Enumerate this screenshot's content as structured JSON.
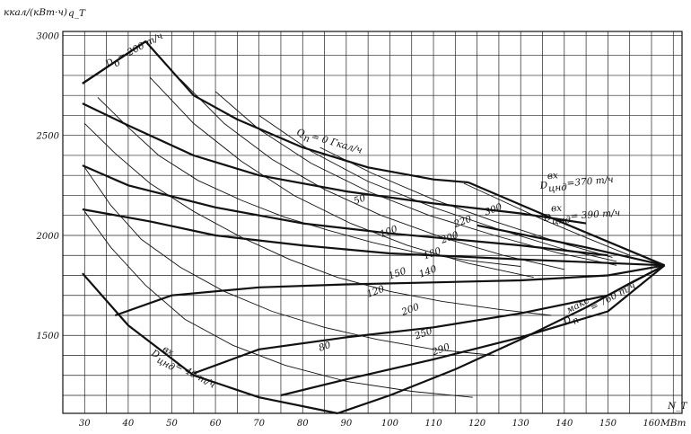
{
  "chart_data": {
    "type": "line",
    "title": "",
    "xlabel": "N_T",
    "xunit": "МВт",
    "ylabel": "q_T",
    "yunit": "ккал/(кВт·ч)",
    "xlim": [
      25,
      167
    ],
    "ylim": [
      1110,
      3020
    ],
    "grid": true,
    "x_ticks": [
      30,
      40,
      50,
      60,
      70,
      80,
      90,
      100,
      110,
      120,
      130,
      140,
      150,
      160
    ],
    "y_ticks": [
      1500,
      2000,
      2500,
      3000
    ],
    "q_curves": [
      {
        "label": "0",
        "label_text": "Q_п = 0 Гкал/ч",
        "x": [
          29.5,
          44,
          55,
          65,
          80,
          95,
          110,
          118
        ],
        "y": [
          2760,
          2970,
          2700,
          2580,
          2440,
          2340,
          2280,
          2265
        ]
      },
      {
        "label": "50",
        "x": [
          29.5,
          40,
          55,
          70,
          90,
          110,
          130,
          145
        ],
        "y": [
          2660,
          2550,
          2400,
          2300,
          2220,
          2160,
          2110,
          2060
        ]
      },
      {
        "label": "100",
        "x": [
          29.5,
          40,
          60,
          80,
          100,
          130,
          150
        ],
        "y": [
          2350,
          2250,
          2140,
          2060,
          2010,
          1950,
          1900
        ]
      },
      {
        "label": "150",
        "x": [
          29.5,
          45,
          60,
          80,
          100,
          130,
          163
        ],
        "y": [
          2130,
          2070,
          2000,
          1950,
          1910,
          1880,
          1850
        ]
      }
    ],
    "g_curves": [
      {
        "label": "",
        "x": [
          33,
          40,
          47,
          56,
          66,
          76,
          86,
          96,
          106,
          118,
          130
        ],
        "y": [
          2690,
          2540,
          2400,
          2275,
          2175,
          2090,
          2025,
          1965,
          1915,
          1875,
          1845
        ]
      },
      {
        "label": "",
        "x": [
          30,
          37,
          45,
          55,
          66,
          77,
          88,
          100,
          112,
          125,
          137
        ],
        "y": [
          2560,
          2410,
          2260,
          2120,
          1990,
          1880,
          1790,
          1720,
          1670,
          1630,
          1600
        ]
      },
      {
        "label": "",
        "x": [
          30,
          36,
          43,
          52,
          62,
          73,
          85,
          97,
          110,
          124
        ],
        "y": [
          2340,
          2150,
          1980,
          1840,
          1720,
          1620,
          1540,
          1480,
          1430,
          1400
        ]
      },
      {
        "label": "80",
        "x": [
          30,
          36,
          44,
          53,
          64,
          76,
          90,
          105,
          119
        ],
        "y": [
          2120,
          1940,
          1750,
          1580,
          1450,
          1350,
          1270,
          1220,
          1190
        ]
      },
      {
        "label": "120",
        "x": [
          45,
          55,
          66,
          78,
          91,
          104,
          118,
          133
        ],
        "y": [
          2790,
          2560,
          2370,
          2200,
          2060,
          1950,
          1860,
          1790
        ]
      },
      {
        "label": "140",
        "x": [
          52,
          62,
          73,
          85,
          98,
          112,
          126,
          140
        ],
        "y": [
          2780,
          2560,
          2380,
          2230,
          2100,
          1990,
          1900,
          1830
        ]
      },
      {
        "label": "160",
        "x": [
          60,
          70,
          82,
          95,
          109,
          124,
          139,
          152
        ],
        "y": [
          2720,
          2530,
          2360,
          2220,
          2100,
          2000,
          1910,
          1850
        ]
      },
      {
        "label": "200",
        "x": [
          70,
          82,
          95,
          110,
          125,
          140,
          152
        ],
        "y": [
          2600,
          2420,
          2270,
          2140,
          2030,
          1930,
          1870
        ]
      },
      {
        "label": "220",
        "x": [
          84,
          96,
          110,
          124,
          138,
          151
        ],
        "y": [
          2440,
          2310,
          2180,
          2070,
          1970,
          1890
        ]
      },
      {
        "label": "300",
        "x": [
          117,
          125,
          135,
          146,
          155
        ],
        "y": [
          2260,
          2180,
          2080,
          1980,
          1900
        ]
      }
    ],
    "d_curves": [
      {
        "label": "150",
        "x": [
          37,
          50,
          70,
          90,
          110,
          130,
          150,
          163
        ],
        "y": [
          1600,
          1700,
          1740,
          1755,
          1765,
          1775,
          1800,
          1850
        ]
      },
      {
        "label": "200",
        "x": [
          55,
          70,
          90,
          110,
          130,
          150,
          163
        ],
        "y": [
          1310,
          1430,
          1490,
          1540,
          1610,
          1700,
          1850
        ]
      },
      {
        "label": "250",
        "x": [
          75,
          90,
          110,
          130,
          150,
          163
        ],
        "y": [
          1200,
          1280,
          1380,
          1490,
          1620,
          1850
        ]
      }
    ],
    "boundaries": [
      {
        "name": "D_o = 200 т/ч",
        "x": [
          29.5,
          44
        ],
        "y": [
          2760,
          2970
        ]
      },
      {
        "name": "D_п^макс = 760 т/ч",
        "x": [
          88,
          100,
          115,
          130,
          145,
          155,
          163
        ],
        "y": [
          1110,
          1200,
          1330,
          1480,
          1640,
          1760,
          1850
        ]
      },
      {
        "name": "D_цнд^вх = 40 т/ч",
        "x": [
          29.5,
          40,
          55,
          70,
          88
        ],
        "y": [
          1810,
          1550,
          1300,
          1190,
          1110
        ]
      },
      {
        "name": "D_цнд^вх = 370 т/ч",
        "x": [
          118,
          140,
          163
        ],
        "y": [
          2265,
          2060,
          1850
        ]
      },
      {
        "name": "D_цнд^вх = 390 т/ч",
        "x": [
          120,
          145,
          163
        ],
        "y": [
          2050,
          1940,
          1850
        ]
      }
    ],
    "annotations": {
      "q0": "Q",
      "q0_sub": "п",
      "q0_rest": "= 0 Гкал/ч",
      "d0": "D",
      "d0_sub": "o",
      "d0_rest": "= 200 т/ч",
      "d370": "D",
      "d370_sup": "вх",
      "d370_sub": "цнд",
      "d370_rest": "=370 т/ч",
      "d390": "D",
      "d390_sup": "вх",
      "d390_sub": "цнд",
      "d390_rest": "= 390 т/ч",
      "d40": "D",
      "d40_sup": "вх",
      "d40_sub": "цнд",
      "d40_rest": "= 40 т/ч",
      "dmax": "D",
      "dmax_sup": "макс",
      "dmax_sub": "п",
      "dmax_rest": "= 760 т/ч"
    },
    "curve_labels": [
      "50",
      "100",
      "150",
      "200",
      "250",
      "290",
      "80",
      "120",
      "140",
      "180",
      "200",
      "220",
      "300"
    ]
  }
}
